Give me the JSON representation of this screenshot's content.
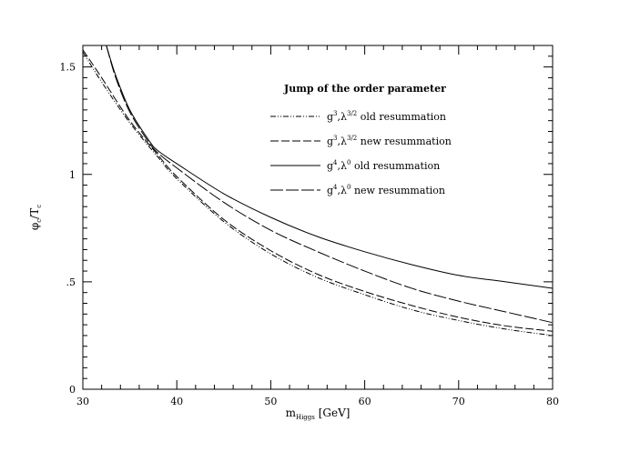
{
  "chart_data": {
    "type": "line",
    "title": "",
    "xlabel": {
      "main": "m",
      "sub": "Higgs",
      "unit": "[GeV]"
    },
    "ylabel": {
      "main": "φ",
      "sub1": "c",
      "mid": "/T",
      "sub2": "c"
    },
    "xlim": [
      30,
      80
    ],
    "ylim": [
      0,
      1.6
    ],
    "x_ticks": [
      30,
      40,
      50,
      60,
      70,
      80
    ],
    "x_tick_labels": [
      "30",
      "40",
      "50",
      "60",
      "70",
      "80"
    ],
    "y_ticks": [
      0,
      0.5,
      1,
      1.5
    ],
    "y_tick_labels": [
      "0",
      ".5",
      "1",
      "1.5"
    ],
    "grid": false,
    "legend": {
      "title": "Jump of the order parameter",
      "position": "top-right",
      "entries": [
        {
          "coupling": "g",
          "p1": "3",
          "l": "λ",
          "p2": "3/2",
          "text": "old resummation",
          "dash": "6,2,1,2,1,2"
        },
        {
          "coupling": "g",
          "p1": "3",
          "l": "λ",
          "p2": "3/2",
          "text": "new resummation",
          "dash": "9,3"
        },
        {
          "coupling": "g",
          "p1": "4",
          "l": "λ",
          "p2": "0",
          "text": "old resummation",
          "dash": ""
        },
        {
          "coupling": "g",
          "p1": "4",
          "l": "λ",
          "p2": "0",
          "text": "new resummation",
          "dash": "14,3"
        }
      ]
    },
    "series": [
      {
        "x": [
          30,
          32,
          35,
          38,
          40,
          45,
          50,
          55,
          60,
          65,
          70,
          75,
          80
        ],
        "y": [
          1.57,
          1.43,
          1.24,
          1.08,
          0.98,
          0.78,
          0.63,
          0.52,
          0.44,
          0.37,
          0.32,
          0.28,
          0.25
        ]
      },
      {
        "x": [
          30,
          32,
          35,
          38,
          40,
          45,
          50,
          55,
          60,
          65,
          70,
          75,
          80
        ],
        "y": [
          1.58,
          1.45,
          1.25,
          1.09,
          0.99,
          0.79,
          0.645,
          0.535,
          0.455,
          0.39,
          0.335,
          0.295,
          0.27
        ]
      },
      {
        "x": [
          32.5,
          33.5,
          35,
          37,
          38,
          40,
          45,
          50,
          55,
          60,
          65,
          70,
          75,
          80
        ],
        "y": [
          1.6,
          1.46,
          1.3,
          1.16,
          1.11,
          1.05,
          0.91,
          0.8,
          0.71,
          0.64,
          0.58,
          0.53,
          0.5,
          0.47
        ]
      },
      {
        "x": [
          32.5,
          33.5,
          35,
          37,
          38,
          40,
          45,
          50,
          55,
          60,
          65,
          70,
          75,
          80
        ],
        "y": [
          1.6,
          1.45,
          1.29,
          1.15,
          1.1,
          1.03,
          0.87,
          0.74,
          0.64,
          0.55,
          0.47,
          0.41,
          0.36,
          0.31
        ]
      }
    ]
  }
}
